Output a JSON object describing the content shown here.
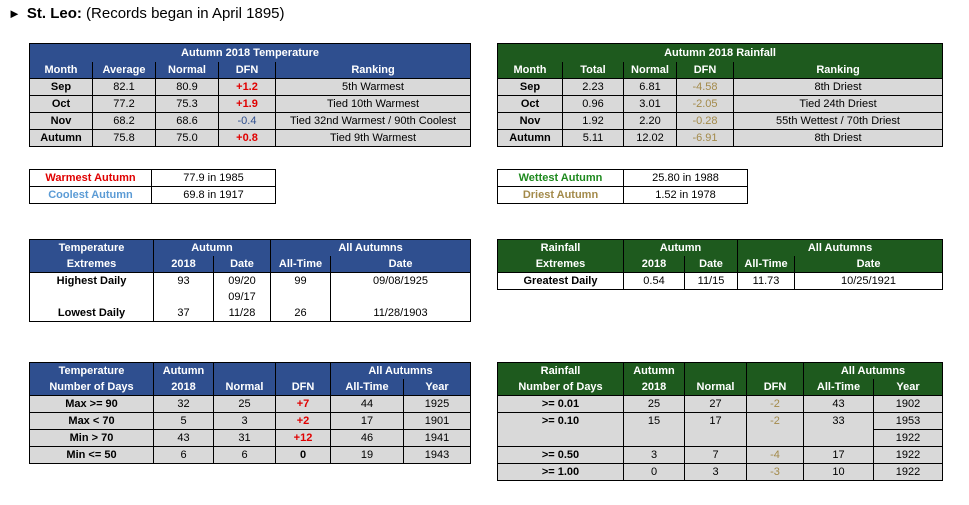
{
  "page": {
    "title_bold": "St. Leo:",
    "title_rest": "(Records began in April 1895)"
  },
  "t1": {
    "title": "Autumn 2018 Temperature",
    "headers": [
      "Month",
      "Average",
      "Normal",
      "DFN",
      "Ranking"
    ],
    "rows": [
      [
        "Sep",
        "82.1",
        "80.9",
        "+1.2",
        "5th Warmest"
      ],
      [
        "Oct",
        "77.2",
        "75.3",
        "+1.9",
        "Tied 10th Warmest"
      ],
      [
        "Nov",
        "68.2",
        "68.6",
        "-0.4",
        "Tied 32nd Warmest / 90th Coolest"
      ],
      [
        "Autumn",
        "75.8",
        "75.0",
        "+0.8",
        "Tied 9th Warmest"
      ]
    ]
  },
  "t2": {
    "title": "Autumn 2018 Rainfall",
    "headers": [
      "Month",
      "Total",
      "Normal",
      "DFN",
      "Ranking"
    ],
    "rows": [
      [
        "Sep",
        "2.23",
        "6.81",
        "-4.58",
        "8th Driest"
      ],
      [
        "Oct",
        "0.96",
        "3.01",
        "-2.05",
        "Tied 24th Driest"
      ],
      [
        "Nov",
        "1.92",
        "2.20",
        "-0.28",
        "55th Wettest / 70th Driest"
      ],
      [
        "Autumn",
        "5.11",
        "12.02",
        "-6.91",
        "8th Driest"
      ]
    ]
  },
  "rec_t": {
    "warmest_label": "Warmest Autumn",
    "warmest_val": "77.9 in 1985",
    "coolest_label": "Coolest Autumn",
    "coolest_val": "69.8 in 1917"
  },
  "rec_r": {
    "wettest_label": "Wettest Autumn",
    "wettest_val": "25.80 in 1988",
    "driest_label": "Driest Autumn",
    "driest_val": "1.52 in 1978"
  },
  "ext_t": {
    "h1": "Temperature",
    "h1b": "Extremes",
    "autumn": "Autumn",
    "all": "All Autumns",
    "c2018": "2018",
    "date": "Date",
    "alltime": "All-Time",
    "date2": "Date",
    "highest": "Highest Daily",
    "hi_val": "93",
    "hi_date1": "09/20",
    "hi_date2": "09/17",
    "hi_all": "99",
    "hi_alldate": "09/08/1925",
    "lowest": "Lowest Daily",
    "lo_val": "37",
    "lo_date": "11/28",
    "lo_all": "26",
    "lo_alldate": "11/28/1903"
  },
  "ext_r": {
    "h1": "Rainfall",
    "h1b": "Extremes",
    "autumn": "Autumn",
    "all": "All Autumns",
    "c2018": "2018",
    "date": "Date",
    "alltime": "All-Time",
    "date2": "Date",
    "label": "Greatest Daily",
    "val": "0.54",
    "dt": "11/15",
    "all_val": "11.73",
    "all_date": "10/25/1921"
  },
  "days_t": {
    "h1": "Temperature",
    "h1b": "Number of Days",
    "autumn": "Autumn",
    "c2018": "2018",
    "normal": "Normal",
    "dfn": "DFN",
    "all": "All Autumns",
    "alltime": "All-Time",
    "year": "Year",
    "rows": [
      [
        "Max >= 90",
        "32",
        "25",
        "+7",
        "44",
        "1925"
      ],
      [
        "Max < 70",
        "5",
        "3",
        "+2",
        "17",
        "1901"
      ],
      [
        "Min > 70",
        "43",
        "31",
        "+12",
        "46",
        "1941"
      ],
      [
        "Min <= 50",
        "6",
        "6",
        "0",
        "19",
        "1943"
      ]
    ]
  },
  "days_r": {
    "h1": "Rainfall",
    "h1b": "Number of Days",
    "autumn": "Autumn",
    "c2018": "2018",
    "normal": "Normal",
    "dfn": "DFN",
    "all": "All Autumns",
    "alltime": "All-Time",
    "year": "Year",
    "rows": [
      [
        ">= 0.01",
        "25",
        "27",
        "-2",
        "43",
        "1902"
      ],
      [
        ">= 0.10",
        "15",
        "17",
        "-2",
        "33",
        "1953"
      ],
      [
        ">= 0.50",
        "3",
        "7",
        "-4",
        "17",
        "1922"
      ],
      [
        ">= 1.00",
        "0",
        "3",
        "-3",
        "10",
        "1922"
      ]
    ],
    "extra_year": "1922"
  },
  "colors": {
    "blue_header": "#2f4f8f",
    "green_header": "#1e5a1e",
    "positive": "#e00000",
    "rain_dfn": "#a38a4a",
    "warmest": "#e00000",
    "coolest": "#5b9bd5",
    "wettest": "#1e8a1e",
    "driest": "#a38a4a"
  }
}
